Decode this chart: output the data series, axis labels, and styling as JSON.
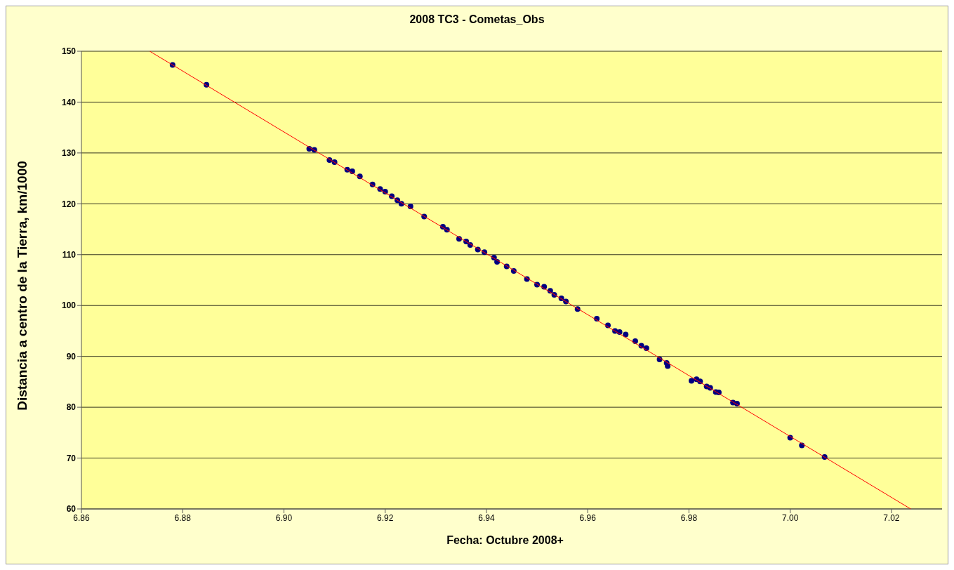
{
  "chart_data": {
    "type": "scatter",
    "title": "2008 TC3 - Cometas_Obs",
    "xlabel": "Fecha: Octubre 2008+",
    "ylabel": "Distancia a centro de la Tierra, km/1000",
    "xlim": [
      6.86,
      7.03
    ],
    "xticks": [
      {
        "value": 6.86,
        "label": "6.86"
      },
      {
        "value": 6.88,
        "label": "6.88"
      },
      {
        "value": 6.9,
        "label": "6.90"
      },
      {
        "value": 6.92,
        "label": "6.92"
      },
      {
        "value": 6.94,
        "label": "6.94"
      },
      {
        "value": 6.96,
        "label": "6.96"
      },
      {
        "value": 6.98,
        "label": "6.98"
      },
      {
        "value": 7.0,
        "label": "7.00"
      },
      {
        "value": 7.02,
        "label": "7.02"
      }
    ],
    "ylim": [
      60,
      150
    ],
    "yticks": [
      60,
      70,
      80,
      90,
      100,
      110,
      120,
      130,
      140,
      150
    ],
    "grid": "y",
    "legend": false,
    "series": [
      {
        "type": "scatter",
        "color": "#000080",
        "marker": "circle",
        "x": [
          6.878,
          6.8847,
          6.905,
          6.906,
          6.909,
          6.91,
          6.9125,
          6.9135,
          6.915,
          6.9175,
          6.919,
          6.92,
          6.9213,
          6.9224,
          6.9232,
          6.925,
          6.9277,
          6.9314,
          6.9322,
          6.9346,
          6.936,
          6.9368,
          6.9383,
          6.9396,
          6.9415,
          6.9421,
          6.944,
          6.9454,
          6.948,
          6.95,
          6.9514,
          6.9526,
          6.9534,
          6.9548,
          6.9557,
          6.958,
          6.9618,
          6.964,
          6.9654,
          6.9663,
          6.9675,
          6.9694,
          6.9706,
          6.9716,
          6.9742,
          6.9756,
          6.9758,
          6.9805,
          6.9815,
          6.9822,
          6.9835,
          6.9842,
          6.9853,
          6.9859,
          6.9887,
          6.9895,
          7.0,
          7.0023,
          7.0068
        ],
        "values": [
          147.3,
          143.4,
          130.8,
          130.6,
          128.6,
          128.2,
          126.7,
          126.4,
          125.4,
          123.8,
          122.9,
          122.4,
          121.5,
          120.7,
          120.0,
          119.5,
          117.5,
          115.5,
          114.9,
          113.1,
          112.6,
          111.9,
          111.0,
          110.5,
          109.4,
          108.6,
          107.7,
          106.8,
          105.2,
          104.1,
          103.7,
          102.9,
          102.1,
          101.4,
          100.8,
          99.3,
          97.4,
          96.1,
          95.0,
          94.8,
          94.3,
          93.0,
          92.1,
          91.6,
          89.4,
          88.7,
          88.1,
          85.2,
          85.5,
          85.1,
          84.1,
          83.8,
          83.0,
          82.9,
          80.9,
          80.7,
          74.0,
          72.5,
          70.2
        ]
      },
      {
        "type": "line",
        "color": "#ff0000",
        "marker": "none",
        "line_style": "solid",
        "x": [
          6.8735,
          7.0238
        ],
        "values": [
          150,
          60
        ]
      }
    ]
  }
}
